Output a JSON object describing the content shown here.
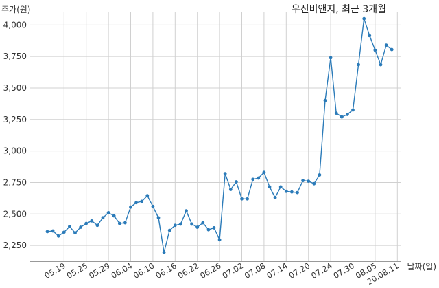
{
  "chart_data": {
    "type": "line",
    "title": "우진비앤지, 최근 3개월",
    "ylabel": "주가(원)",
    "xlabel": "날짜(일)",
    "ylim": [
      2125,
      4100
    ],
    "yticks": [
      2250,
      2500,
      2750,
      3000,
      3250,
      3500,
      3750,
      4000
    ],
    "ytick_labels": [
      "2,250",
      "2,500",
      "2,750",
      "3,000",
      "3,250",
      "3,500",
      "3,750",
      "4,000"
    ],
    "xtick_labels": [
      "05.19",
      "05.25",
      "05.29",
      "06.04",
      "06.10",
      "06.16",
      "06.22",
      "06.26",
      "07.02",
      "07.08",
      "07.14",
      "07.20",
      "07.24",
      "07.30",
      "08.05",
      "20.08.11"
    ],
    "xtick_index": [
      3,
      7,
      11,
      15,
      19,
      23,
      27,
      31,
      35,
      39,
      43,
      47,
      51,
      55,
      59,
      63
    ],
    "grid": true,
    "color": "#2b7bb9",
    "values": [
      2360,
      2365,
      2325,
      2355,
      2400,
      2350,
      2395,
      2425,
      2445,
      2410,
      2470,
      2510,
      2485,
      2425,
      2430,
      2555,
      2590,
      2600,
      2645,
      2560,
      2470,
      2195,
      2370,
      2410,
      2420,
      2525,
      2420,
      2395,
      2430,
      2375,
      2390,
      2295,
      2820,
      2695,
      2755,
      2620,
      2620,
      2775,
      2785,
      2830,
      2715,
      2630,
      2715,
      2680,
      2675,
      2670,
      2765,
      2760,
      2740,
      2810,
      3400,
      3740,
      3300,
      3270,
      3290,
      3325,
      3685,
      4050,
      3915,
      3800,
      3685,
      3840,
      3805
    ]
  }
}
